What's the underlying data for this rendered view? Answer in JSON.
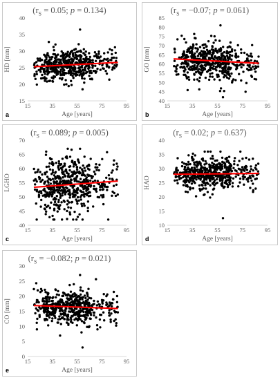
{
  "panels": [
    {
      "id": "a",
      "letter": "a",
      "stat": {
        "r_prefix": "(r",
        "r_sub": "S",
        "r_value": " = 0.05; ",
        "p_label": "p",
        "p_value": " = 0.134)"
      },
      "chart_data": {
        "type": "scatter",
        "xlabel": "Age [years]",
        "ylabel": "HD [mm]",
        "xlim": [
          15,
          95
        ],
        "ylim": [
          15,
          40
        ],
        "xticks": [
          15,
          35,
          55,
          75,
          95
        ],
        "yticks": [
          15,
          20,
          25,
          30,
          35,
          40
        ],
        "trend": {
          "x": [
            20,
            88
          ],
          "y": [
            25.3,
            26.6
          ]
        },
        "cloud": {
          "x_range": [
            20,
            88
          ],
          "center": 26.0,
          "spread": 2.2,
          "min": 18.5,
          "max": 36.5,
          "n": 520
        },
        "colors": {
          "points": "#000000",
          "trend": "#ff0000"
        }
      }
    },
    {
      "id": "b",
      "letter": "b",
      "stat": {
        "r_prefix": "(r",
        "r_sub": "S",
        "r_value": " = −0.07; ",
        "p_label": "p",
        "p_value": " = 0.061)"
      },
      "chart_data": {
        "type": "scatter",
        "xlabel": "Age [years]",
        "ylabel": "GO [mm]",
        "xlim": [
          15,
          95
        ],
        "ylim": [
          40,
          85
        ],
        "xticks": [
          15,
          35,
          55,
          75,
          95
        ],
        "yticks": [
          40,
          45,
          50,
          55,
          60,
          65,
          70,
          75,
          80,
          85
        ],
        "trend": {
          "x": [
            20,
            88
          ],
          "y": [
            62.8,
            60.4
          ]
        },
        "cloud": {
          "x_range": [
            20,
            88
          ],
          "center": 61.5,
          "spread": 5.0,
          "min": 42,
          "max": 81,
          "n": 520
        },
        "colors": {
          "points": "#000000",
          "trend": "#ff0000"
        }
      }
    },
    {
      "id": "c",
      "letter": "c",
      "stat": {
        "r_prefix": "(r",
        "r_sub": "S",
        "r_value": " = 0.089; ",
        "p_label": "p",
        "p_value": " = 0.005)"
      },
      "chart_data": {
        "type": "scatter",
        "xlabel": "Age [years]",
        "ylabel": "LGHO",
        "xlim": [
          15,
          95
        ],
        "ylim": [
          40,
          70
        ],
        "xticks": [
          15,
          35,
          55,
          75,
          95
        ],
        "yticks": [
          40,
          45,
          50,
          55,
          60,
          65,
          70
        ],
        "trend": {
          "x": [
            20,
            88
          ],
          "y": [
            53.4,
            55.6
          ]
        },
        "cloud": {
          "x_range": [
            20,
            88
          ],
          "center": 54.5,
          "spread": 4.8,
          "min": 42,
          "max": 67,
          "n": 520
        },
        "colors": {
          "points": "#000000",
          "trend": "#ff0000"
        }
      }
    },
    {
      "id": "d",
      "letter": "d",
      "stat": {
        "r_prefix": "(r",
        "r_sub": "S",
        "r_value": " = 0.02; ",
        "p_label": "p",
        "p_value": " = 0.637)"
      },
      "chart_data": {
        "type": "scatter",
        "xlabel": "Age [years]",
        "ylabel": "HAO",
        "xlim": [
          15,
          95
        ],
        "ylim": [
          10,
          40
        ],
        "xticks": [
          15,
          35,
          55,
          75,
          95
        ],
        "yticks": [
          10,
          15,
          20,
          25,
          30,
          35,
          40
        ],
        "trend": {
          "x": [
            20,
            88
          ],
          "y": [
            28.0,
            28.3
          ]
        },
        "cloud": {
          "x_range": [
            20,
            88
          ],
          "center": 28.2,
          "spread": 2.8,
          "min": 12.5,
          "max": 36,
          "n": 520
        },
        "colors": {
          "points": "#000000",
          "trend": "#ff0000"
        }
      }
    },
    {
      "id": "e",
      "letter": "e",
      "stat": {
        "r_prefix": "(r",
        "r_sub": "S",
        "r_value": " = −0.082; ",
        "p_label": "p",
        "p_value": " = 0.021)"
      },
      "chart_data": {
        "type": "scatter",
        "xlabel": "Age [years]",
        "ylabel": "CO [mm]",
        "xlim": [
          15,
          95
        ],
        "ylim": [
          0,
          30
        ],
        "xticks": [
          15,
          35,
          55,
          75,
          95
        ],
        "yticks": [
          0,
          5,
          10,
          15,
          20,
          25,
          30
        ],
        "trend": {
          "x": [
            20,
            88
          ],
          "y": [
            16.9,
            15.9
          ]
        },
        "cloud": {
          "x_range": [
            20,
            88
          ],
          "center": 16.4,
          "spread": 2.9,
          "min": 3,
          "max": 27,
          "n": 520
        },
        "colors": {
          "points": "#000000",
          "trend": "#ff0000"
        }
      }
    }
  ]
}
